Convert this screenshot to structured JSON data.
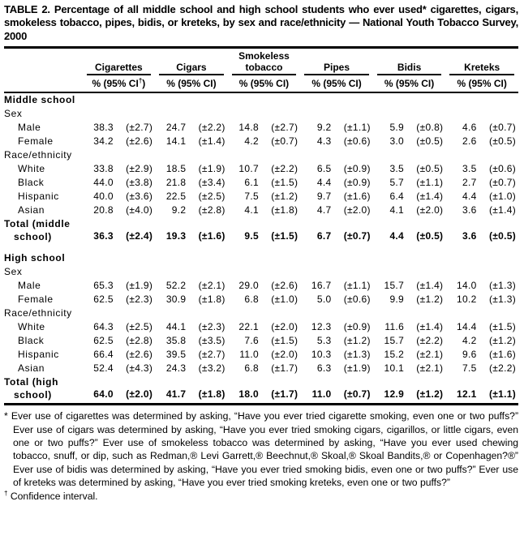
{
  "title": "TABLE 2.  Percentage of all middle school and high school students who ever used* cigarettes, cigars, smokeless tobacco, pipes, bidis, or kreteks, by sex and race/ethnicity — National Youth Tobacco Survey, 2000",
  "table": {
    "columns": [
      {
        "label": "Cigarettes",
        "sub": "% (95% CI†)"
      },
      {
        "label": "Cigars",
        "sub": "% (95% CI)"
      },
      {
        "label": "Smokeless tobacco",
        "sub": "% (95% CI)"
      },
      {
        "label": "Pipes",
        "sub": "% (95% CI)"
      },
      {
        "label": "Bidis",
        "sub": "% (95% CI)"
      },
      {
        "label": "Kreteks",
        "sub": "% (95% CI)"
      }
    ],
    "rows": [
      {
        "type": "section",
        "label": "Middle school"
      },
      {
        "type": "group",
        "label": "Sex"
      },
      {
        "type": "data",
        "label": "Male",
        "values": [
          "38.3",
          "(±2.7)",
          "24.7",
          "(±2.2)",
          "14.8",
          "(±2.7)",
          "9.2",
          "(±1.1)",
          "5.9",
          "(±0.8)",
          "4.6",
          "(±0.7)"
        ]
      },
      {
        "type": "data",
        "label": "Female",
        "values": [
          "34.2",
          "(±2.6)",
          "14.1",
          "(±1.4)",
          "4.2",
          "(±0.7)",
          "4.3",
          "(±0.6)",
          "3.0",
          "(±0.5)",
          "2.6",
          "(±0.5)"
        ]
      },
      {
        "type": "group",
        "label": "Race/ethnicity"
      },
      {
        "type": "data",
        "label": "White",
        "values": [
          "33.8",
          "(±2.9)",
          "18.5",
          "(±1.9)",
          "10.7",
          "(±2.2)",
          "6.5",
          "(±0.9)",
          "3.5",
          "(±0.5)",
          "3.5",
          "(±0.6)"
        ]
      },
      {
        "type": "data",
        "label": "Black",
        "values": [
          "44.0",
          "(±3.8)",
          "21.8",
          "(±3.4)",
          "6.1",
          "(±1.5)",
          "4.4",
          "(±0.9)",
          "5.7",
          "(±1.1)",
          "2.7",
          "(±0.7)"
        ]
      },
      {
        "type": "data",
        "label": "Hispanic",
        "values": [
          "40.0",
          "(±3.6)",
          "22.5",
          "(±2.5)",
          "7.5",
          "(±1.2)",
          "9.7",
          "(±1.6)",
          "6.4",
          "(±1.4)",
          "4.4",
          "(±1.0)"
        ]
      },
      {
        "type": "data",
        "label": "Asian",
        "values": [
          "20.8",
          "(±4.0)",
          "9.2",
          "(±2.8)",
          "4.1",
          "(±1.8)",
          "4.7",
          "(±2.0)",
          "4.1",
          "(±2.0)",
          "3.6",
          "(±1.4)"
        ]
      },
      {
        "type": "total",
        "label_lines": [
          "Total (middle",
          "school)"
        ],
        "values": [
          "36.3",
          "(±2.4)",
          "19.3",
          "(±1.6)",
          "9.5",
          "(±1.5)",
          "6.7",
          "(±0.7)",
          "4.4",
          "(±0.5)",
          "3.6",
          "(±0.5)"
        ]
      },
      {
        "type": "section",
        "label": "High school",
        "gap": true
      },
      {
        "type": "group",
        "label": "Sex"
      },
      {
        "type": "data",
        "label": "Male",
        "values": [
          "65.3",
          "(±1.9)",
          "52.2",
          "(±2.1)",
          "29.0",
          "(±2.6)",
          "16.7",
          "(±1.1)",
          "15.7",
          "(±1.4)",
          "14.0",
          "(±1.3)"
        ]
      },
      {
        "type": "data",
        "label": "Female",
        "values": [
          "62.5",
          "(±2.3)",
          "30.9",
          "(±1.8)",
          "6.8",
          "(±1.0)",
          "5.0",
          "(±0.6)",
          "9.9",
          "(±1.2)",
          "10.2",
          "(±1.3)"
        ]
      },
      {
        "type": "group",
        "label": "Race/ethnicity"
      },
      {
        "type": "data",
        "label": "White",
        "values": [
          "64.3",
          "(±2.5)",
          "44.1",
          "(±2.3)",
          "22.1",
          "(±2.0)",
          "12.3",
          "(±0.9)",
          "11.6",
          "(±1.4)",
          "14.4",
          "(±1.5)"
        ]
      },
      {
        "type": "data",
        "label": "Black",
        "values": [
          "62.5",
          "(±2.8)",
          "35.8",
          "(±3.5)",
          "7.6",
          "(±1.5)",
          "5.3",
          "(±1.2)",
          "15.7",
          "(±2.2)",
          "4.2",
          "(±1.2)"
        ]
      },
      {
        "type": "data",
        "label": "Hispanic",
        "values": [
          "66.4",
          "(±2.6)",
          "39.5",
          "(±2.7)",
          "11.0",
          "(±2.0)",
          "10.3",
          "(±1.3)",
          "15.2",
          "(±2.1)",
          "9.6",
          "(±1.6)"
        ]
      },
      {
        "type": "data",
        "label": "Asian",
        "values": [
          "52.4",
          "(±4.3)",
          "24.3",
          "(±3.2)",
          "6.8",
          "(±1.7)",
          "6.3",
          "(±1.9)",
          "10.1",
          "(±2.1)",
          "7.5",
          "(±2.2)"
        ]
      },
      {
        "type": "total",
        "label_lines": [
          "Total (high",
          "school)"
        ],
        "values": [
          "64.0",
          "(±2.0)",
          "41.7",
          "(±1.8)",
          "18.0",
          "(±1.7)",
          "11.0",
          "(±0.7)",
          "12.9",
          "(±1.2)",
          "12.1",
          "(±1.1)"
        ]
      }
    ]
  },
  "footnotes": [
    {
      "marker": "*",
      "text": "Ever use of cigarettes was determined by asking, “Have you ever tried cigarette smoking, even one or two puffs?” Ever use of cigars was determined by asking, “Have you ever tried smoking cigars, cigarillos, or little cigars, even one or two puffs?” Ever use of smokeless tobacco was determined by asking, “Have you ever used chewing tobacco, snuff, or dip, such as Redman,® Levi Garrett,® Beechnut,® Skoal,® Skoal Bandits,® or Copenhagen?®” Ever use of bidis was determined by asking, “Have you ever tried smoking bidis, even one or two puffs?” Ever use of kreteks was determined by asking, “Have you ever tried smoking kreteks, even one or two puffs?”"
    },
    {
      "marker": "†",
      "text": "Confidence interval."
    }
  ]
}
